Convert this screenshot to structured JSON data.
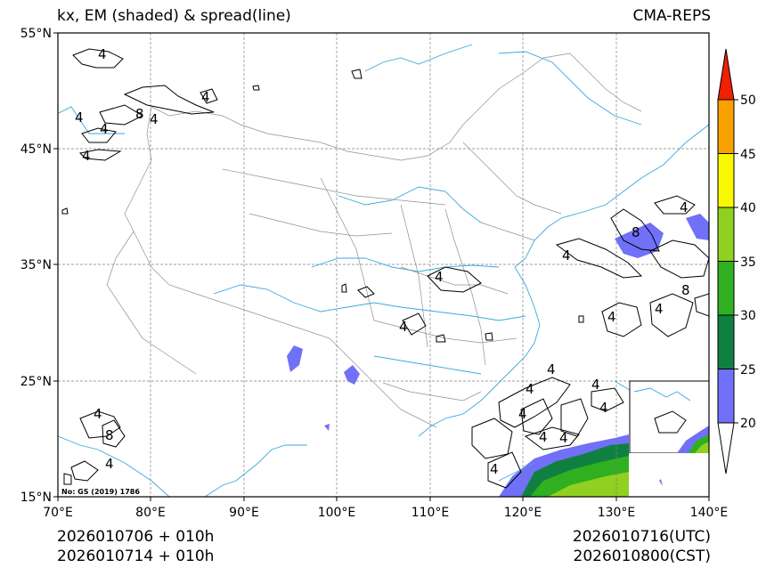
{
  "header": {
    "title_left": "kx, EM (shaded) & spread(line)",
    "title_right": "CMA-REPS"
  },
  "footer": {
    "left_line1": "2026010706  +  010h",
    "left_line2": "2026010714  +  010h",
    "right_line1": "2026010716(UTC)",
    "right_line2": "2026010800(CST)"
  },
  "map": {
    "lat_labels": [
      "55°N",
      "45°N",
      "35°N",
      "25°N",
      "15°N"
    ],
    "lon_labels": [
      "70°E",
      "80°E",
      "90°E",
      "100°E",
      "110°E",
      "120°E",
      "130°E",
      "140°E"
    ],
    "review_number": "No: GS (2019) 1786",
    "contour_labels": [
      "4",
      "4",
      "8",
      "4",
      "4",
      "4",
      "4",
      "4",
      "4",
      "8",
      "4",
      "4",
      "8",
      "4",
      "4",
      "8",
      "4",
      "4",
      "4",
      "4",
      "4",
      "4",
      "4",
      "4",
      "4",
      "4",
      "4",
      "4"
    ]
  },
  "colorbar": {
    "ticks": [
      "20",
      "25",
      "30",
      "35",
      "40",
      "45",
      "50"
    ],
    "colors": {
      "c20": "#7070f8",
      "c25": "#108040",
      "c30": "#30b020",
      "c35": "#90d020",
      "c40": "#f8f800",
      "c45": "#f8a000",
      "c50": "#f02000"
    }
  }
}
